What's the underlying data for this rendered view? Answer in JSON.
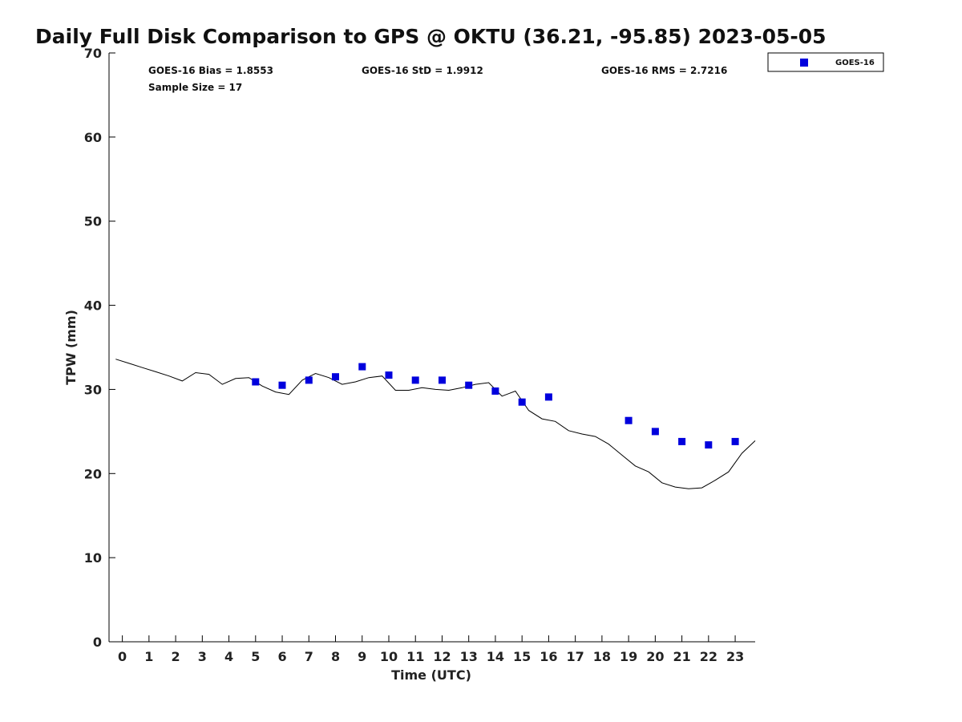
{
  "chart_data": {
    "type": "scatter",
    "title": "Daily Full Disk Comparison to GPS @ OKTU (36.21, -95.85) 2023-05-05",
    "xlabel": "Time (UTC)",
    "ylabel": "TPW (mm)",
    "xlim": [
      -0.5,
      23.75
    ],
    "ylim": [
      0,
      70
    ],
    "x_ticks": [
      0,
      1,
      2,
      3,
      4,
      5,
      6,
      7,
      8,
      9,
      10,
      11,
      12,
      13,
      14,
      15,
      16,
      17,
      18,
      19,
      20,
      21,
      22,
      23
    ],
    "y_ticks": [
      0,
      10,
      20,
      30,
      40,
      50,
      60,
      70
    ],
    "grid": false,
    "legend_position": "outside-top-right",
    "stats": {
      "bias": "GOES-16 Bias = 1.8553",
      "std": "GOES-16 StD = 1.9912",
      "rms": "GOES-16 RMS = 2.7216",
      "sample_size": "Sample Size = 17"
    },
    "gps_line": {
      "color": "#000000",
      "x": [
        -0.25,
        0.25,
        0.75,
        1.25,
        1.75,
        2.25,
        2.75,
        3.25,
        3.75,
        4.25,
        4.75,
        5.25,
        5.75,
        6.25,
        6.75,
        7.25,
        7.75,
        8.25,
        8.75,
        9.25,
        9.75,
        10.25,
        10.75,
        11.25,
        11.75,
        12.25,
        12.75,
        13.25,
        13.75,
        14.25,
        14.75,
        15.25,
        15.75,
        16.25,
        16.75,
        17.25,
        17.75,
        18.25,
        18.75,
        19.25,
        19.75,
        20.25,
        20.75,
        21.25,
        21.75,
        22.25,
        22.75,
        23.25,
        23.75
      ],
      "y": [
        33.6,
        33.1,
        32.6,
        32.1,
        31.6,
        31.0,
        32.0,
        31.8,
        30.6,
        31.3,
        31.4,
        30.4,
        29.7,
        29.4,
        31.1,
        31.9,
        31.4,
        30.6,
        30.9,
        31.4,
        31.6,
        29.9,
        29.9,
        30.2,
        30.0,
        29.9,
        30.2,
        30.6,
        30.8,
        29.2,
        29.8,
        27.5,
        26.5,
        26.2,
        25.1,
        24.7,
        24.4,
        23.5,
        22.2,
        20.9,
        20.2,
        18.9,
        18.4,
        18.2,
        18.3,
        19.2,
        20.2,
        22.4,
        23.9
      ]
    },
    "series": [
      {
        "name": "GOES-16",
        "color": "#0000dd",
        "marker": "square",
        "x": [
          5,
          6,
          7,
          8,
          9,
          10,
          11,
          12,
          13,
          14,
          15,
          16,
          19,
          20,
          21,
          22,
          23
        ],
        "y": [
          30.9,
          30.5,
          31.1,
          31.5,
          32.7,
          31.7,
          31.1,
          31.1,
          30.5,
          29.8,
          28.5,
          29.1,
          26.3,
          25.0,
          23.8,
          23.4,
          23.8
        ]
      }
    ]
  }
}
